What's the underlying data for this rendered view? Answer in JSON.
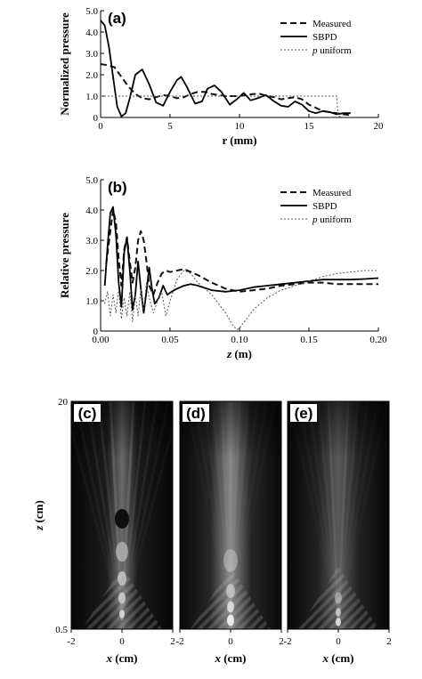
{
  "chart_data": [
    {
      "type": "line",
      "panel": "(a)",
      "xlabel": "r (mm)",
      "ylabel": "Normalized pressure",
      "xlim": [
        0,
        20
      ],
      "ylim": [
        0,
        5.0
      ],
      "xticks": [
        "0",
        "5",
        "10",
        "15",
        "20"
      ],
      "yticks": [
        "0",
        "1.0",
        "2.0",
        "3.0",
        "4.0",
        "5.0"
      ],
      "legend_position": "top-right",
      "series": [
        {
          "name": "Measured",
          "style": "dashed",
          "x": [
            0,
            0.5,
            1.0,
            1.5,
            2.0,
            2.5,
            3.0,
            3.5,
            4.0,
            4.5,
            5.0,
            5.5,
            6.0,
            6.5,
            7.0,
            7.5,
            8.0,
            8.5,
            9.0,
            9.5,
            10.0,
            10.5,
            11.0,
            11.5,
            12.0,
            12.5,
            13.0,
            13.5,
            14.0,
            14.5,
            15.0,
            15.5,
            16.0,
            16.5,
            17.0,
            17.5,
            18.0
          ],
          "y": [
            2.5,
            2.45,
            2.35,
            1.9,
            1.45,
            1.1,
            0.9,
            0.85,
            0.95,
            1.05,
            1.0,
            0.9,
            0.95,
            1.1,
            1.2,
            1.2,
            1.1,
            1.05,
            1.0,
            1.0,
            1.0,
            1.05,
            1.1,
            1.1,
            1.0,
            0.95,
            0.85,
            0.9,
            0.95,
            0.85,
            0.6,
            0.45,
            0.3,
            0.25,
            0.2,
            0.15,
            0.1
          ]
        },
        {
          "name": "SBPD",
          "style": "solid",
          "x": [
            0,
            0.3,
            0.6,
            0.9,
            1.2,
            1.5,
            1.8,
            2.1,
            2.5,
            3.0,
            3.5,
            4.0,
            4.5,
            5.0,
            5.5,
            5.8,
            6.2,
            6.8,
            7.3,
            7.7,
            8.2,
            8.7,
            9.3,
            9.8,
            10.3,
            10.8,
            11.3,
            11.9,
            12.5,
            13.0,
            13.5,
            14.0,
            14.5,
            15.0,
            15.5,
            16.0,
            16.5,
            17.0,
            17.5,
            18.0
          ],
          "y": [
            4.55,
            4.3,
            3.3,
            1.9,
            0.5,
            0.05,
            0.2,
            0.9,
            2.0,
            2.25,
            1.55,
            0.7,
            0.55,
            1.2,
            1.75,
            1.9,
            1.45,
            0.65,
            0.75,
            1.35,
            1.5,
            1.2,
            0.6,
            0.85,
            1.15,
            0.8,
            0.9,
            1.05,
            0.75,
            0.55,
            0.5,
            0.75,
            0.6,
            0.3,
            0.2,
            0.3,
            0.25,
            0.15,
            0.2,
            0.2
          ]
        },
        {
          "name": "p uniform",
          "style": "dotted",
          "x": [
            0,
            17.0,
            17.1,
            17.3
          ],
          "y": [
            1.0,
            1.0,
            0.1,
            0.0
          ]
        }
      ]
    },
    {
      "type": "line",
      "panel": "(b)",
      "xlabel": "z (m)",
      "ylabel": "Relative pressure",
      "xlim": [
        0,
        0.2
      ],
      "ylim": [
        0,
        5.0
      ],
      "xticks": [
        "0.00",
        "0.05",
        "0.10",
        "0.15",
        "0.20"
      ],
      "yticks": [
        "0",
        "1.0",
        "2.0",
        "3.0",
        "4.0",
        "5.0"
      ],
      "legend_position": "top-right",
      "series": [
        {
          "name": "Measured",
          "style": "dashed",
          "x": [
            0.004,
            0.007,
            0.009,
            0.011,
            0.013,
            0.015,
            0.017,
            0.019,
            0.021,
            0.023,
            0.025,
            0.027,
            0.029,
            0.031,
            0.033,
            0.035,
            0.038,
            0.041,
            0.044,
            0.047,
            0.05,
            0.055,
            0.06,
            0.065,
            0.07,
            0.08,
            0.09,
            0.1,
            0.11,
            0.12,
            0.13,
            0.14,
            0.15,
            0.16,
            0.17,
            0.18,
            0.19,
            0.2
          ],
          "y": [
            2.2,
            3.3,
            4.0,
            3.6,
            2.4,
            1.5,
            2.7,
            3.1,
            2.3,
            1.6,
            2.1,
            3.0,
            3.3,
            3.0,
            2.3,
            1.5,
            1.2,
            1.6,
            1.9,
            2.0,
            1.95,
            2.0,
            2.05,
            1.95,
            1.85,
            1.6,
            1.4,
            1.3,
            1.35,
            1.4,
            1.5,
            1.55,
            1.6,
            1.6,
            1.55,
            1.55,
            1.55,
            1.55
          ]
        },
        {
          "name": "SBPD",
          "style": "solid",
          "x": [
            0.003,
            0.005,
            0.007,
            0.009,
            0.011,
            0.013,
            0.015,
            0.017,
            0.019,
            0.021,
            0.023,
            0.025,
            0.027,
            0.029,
            0.031,
            0.033,
            0.035,
            0.037,
            0.039,
            0.042,
            0.045,
            0.048,
            0.051,
            0.055,
            0.06,
            0.065,
            0.07,
            0.08,
            0.09,
            0.1,
            0.11,
            0.12,
            0.13,
            0.14,
            0.15,
            0.16,
            0.17,
            0.18,
            0.19,
            0.2
          ],
          "y": [
            1.5,
            2.8,
            3.9,
            4.1,
            3.2,
            1.6,
            0.8,
            2.6,
            3.1,
            2.0,
            0.7,
            1.2,
            2.3,
            1.4,
            0.6,
            1.3,
            2.1,
            1.4,
            0.9,
            1.1,
            1.5,
            1.2,
            1.3,
            1.4,
            1.5,
            1.55,
            1.5,
            1.35,
            1.3,
            1.35,
            1.45,
            1.5,
            1.55,
            1.6,
            1.65,
            1.7,
            1.7,
            1.7,
            1.72,
            1.75
          ]
        },
        {
          "name": "p uniform",
          "style": "dotted",
          "x": [
            0.003,
            0.005,
            0.007,
            0.009,
            0.011,
            0.013,
            0.015,
            0.017,
            0.019,
            0.021,
            0.023,
            0.025,
            0.027,
            0.029,
            0.031,
            0.033,
            0.035,
            0.038,
            0.041,
            0.044,
            0.047,
            0.05,
            0.055,
            0.06,
            0.065,
            0.07,
            0.075,
            0.08,
            0.085,
            0.09,
            0.095,
            0.098,
            0.1,
            0.105,
            0.11,
            0.12,
            0.13,
            0.14,
            0.15,
            0.16,
            0.17,
            0.18,
            0.19,
            0.2
          ],
          "y": [
            0.9,
            1.3,
            0.5,
            1.2,
            0.6,
            1.4,
            0.4,
            1.1,
            0.5,
            1.3,
            0.3,
            1.2,
            0.5,
            1.4,
            0.7,
            1.6,
            1.1,
            0.6,
            1.0,
            1.3,
            0.5,
            1.0,
            1.7,
            2.0,
            1.9,
            1.6,
            1.4,
            1.2,
            0.9,
            0.6,
            0.2,
            0.05,
            0.1,
            0.4,
            0.7,
            1.1,
            1.35,
            1.5,
            1.65,
            1.8,
            1.9,
            1.95,
            2.0,
            2.0
          ]
        }
      ]
    },
    {
      "type": "heatmap",
      "panels": [
        "(c)",
        "(d)",
        "(e)"
      ],
      "xlabel": "x (cm)",
      "ylabel": "z (cm)",
      "xlim": [
        -2,
        2
      ],
      "ylim": [
        0.5,
        20
      ],
      "xticks": [
        "-2",
        "0",
        "2"
      ],
      "yticks": [
        "0.5",
        "20"
      ],
      "colormap": "grayscale"
    }
  ]
}
